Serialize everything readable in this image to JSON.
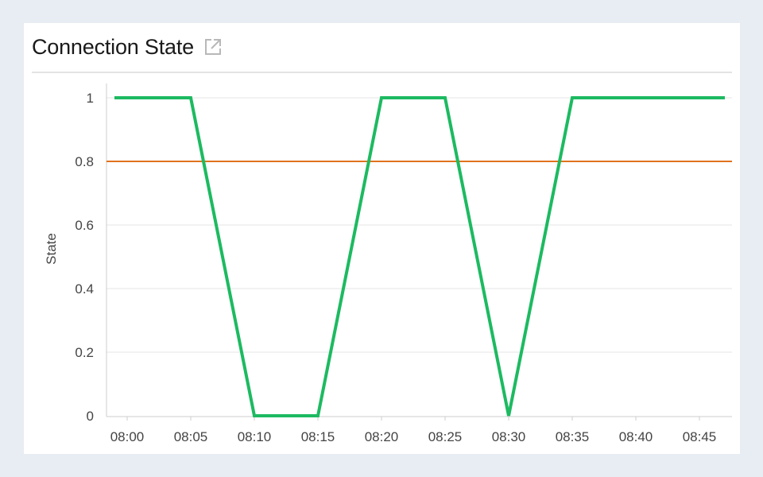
{
  "panel": {
    "title": "Connection State",
    "icon": "external-link-icon"
  },
  "colors": {
    "series": "#1dba61",
    "threshold": "#e0721e",
    "grid": "#e6e6e6"
  },
  "chart_data": {
    "type": "line",
    "title": "Connection State",
    "xlabel": "",
    "ylabel": "State",
    "x_ticks": [
      "08:00",
      "08:05",
      "08:10",
      "08:15",
      "08:20",
      "08:25",
      "08:30",
      "08:35",
      "08:40",
      "08:45"
    ],
    "y_ticks": [
      0,
      0.2,
      0.4,
      0.6,
      0.8,
      1
    ],
    "xlim": [
      "07:59",
      "08:47"
    ],
    "ylim": [
      0,
      1
    ],
    "grid": true,
    "series": [
      {
        "points": [
          {
            "x": "07:59",
            "y": 1
          },
          {
            "x": "08:05",
            "y": 1
          },
          {
            "x": "08:10",
            "y": 0
          },
          {
            "x": "08:15",
            "y": 0
          },
          {
            "x": "08:20",
            "y": 1
          },
          {
            "x": "08:25",
            "y": 1
          },
          {
            "x": "08:30",
            "y": 0
          },
          {
            "x": "08:35",
            "y": 1
          },
          {
            "x": "08:47",
            "y": 1
          }
        ]
      }
    ],
    "threshold": 0.8
  }
}
